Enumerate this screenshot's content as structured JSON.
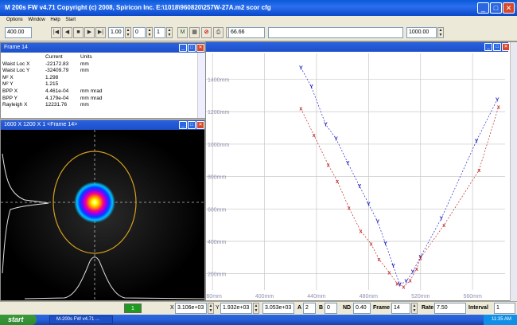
{
  "window": {
    "title": "M 200s FW   v4.71   Copyright (c) 2008, Spiricon Inc.   E:\\1018\\960820\\257W-27A.m2 scor cfg"
  },
  "menu": [
    "Options",
    "Window",
    "Help",
    "Start"
  ],
  "toolbar": {
    "left_value": "400.00",
    "mid_value_1": "1.00",
    "mid_value_2": "0",
    "mid_value_3": "1",
    "value_field": "66.66",
    "right_value": "1000.00"
  },
  "stats_panel": {
    "title": "Frame 14",
    "headers": [
      "",
      "Current",
      "Units"
    ],
    "rows": [
      [
        "Waist Loc X",
        "-22172.83",
        "mm"
      ],
      [
        "Waist Loc Y",
        "-32409.79",
        "mm"
      ],
      [
        "M² X",
        "1.298",
        ""
      ],
      [
        "M² Y",
        "1.215",
        ""
      ],
      [
        "BPP X",
        "4.461e-04",
        "mm mrad"
      ],
      [
        "BPP Y",
        "4.179e-04",
        "mm mrad"
      ],
      [
        "Rayleigh X",
        "12231.76",
        "mm"
      ]
    ]
  },
  "beam_panel": {
    "title": "1600 X 1200 X 1   <Frame 14>"
  },
  "chart_data": {
    "type": "scatter",
    "xlabel": "",
    "ylabel": "",
    "x_ticks": [
      "360mm",
      "400mm",
      "440mm",
      "480mm",
      "520mm",
      "560mm"
    ],
    "y_ticks": [
      "1400mm",
      "1200mm",
      "1000mm",
      "800mm",
      "600mm",
      "400mm",
      "200mm"
    ],
    "xlim": [
      355,
      585
    ],
    "ylim": [
      100,
      1560
    ],
    "grid": true,
    "series": [
      {
        "color": "#2828c8",
        "marker": "Y",
        "points": [
          [
            428,
            1472
          ],
          [
            436,
            1355
          ],
          [
            447,
            1122
          ],
          [
            455,
            1034
          ],
          [
            464,
            884
          ],
          [
            473,
            742
          ],
          [
            480,
            632
          ],
          [
            487,
            522
          ],
          [
            493,
            387
          ],
          [
            499,
            249
          ],
          [
            504,
            134
          ],
          [
            509,
            153
          ],
          [
            514,
            213
          ],
          [
            520,
            305
          ],
          [
            536,
            542
          ],
          [
            563,
            1020
          ],
          [
            579,
            1276
          ]
        ]
      },
      {
        "color": "#c02828",
        "marker": "x",
        "points": [
          [
            428,
            1220
          ],
          [
            438,
            1055
          ],
          [
            449,
            872
          ],
          [
            456,
            772
          ],
          [
            465,
            606
          ],
          [
            474,
            464
          ],
          [
            482,
            384
          ],
          [
            488,
            290
          ],
          [
            496,
            207
          ],
          [
            502,
            140
          ],
          [
            507,
            119
          ],
          [
            512,
            158
          ],
          [
            517,
            231
          ],
          [
            520,
            297
          ],
          [
            538,
            500
          ],
          [
            565,
            840
          ],
          [
            580,
            1230
          ]
        ]
      }
    ]
  },
  "status": {
    "indicator": "1",
    "x_value": "3.106e+03",
    "y_value": "1.932e+03",
    "z_value": "3.053e+03",
    "a_label": "A",
    "a_value": "2",
    "b_label": "B",
    "b_value": "0",
    "nd_label": "ND",
    "nd_value": "0.40",
    "frame_label": "Frame",
    "frame_value": "14",
    "rate_label": "Rate",
    "rate_value": "7.50",
    "interval_label": "Interval",
    "interval_value": "1"
  },
  "taskbar": {
    "start": "start",
    "item": "M-200s FW   v4.71  ...",
    "clock": "11:35 AM"
  }
}
